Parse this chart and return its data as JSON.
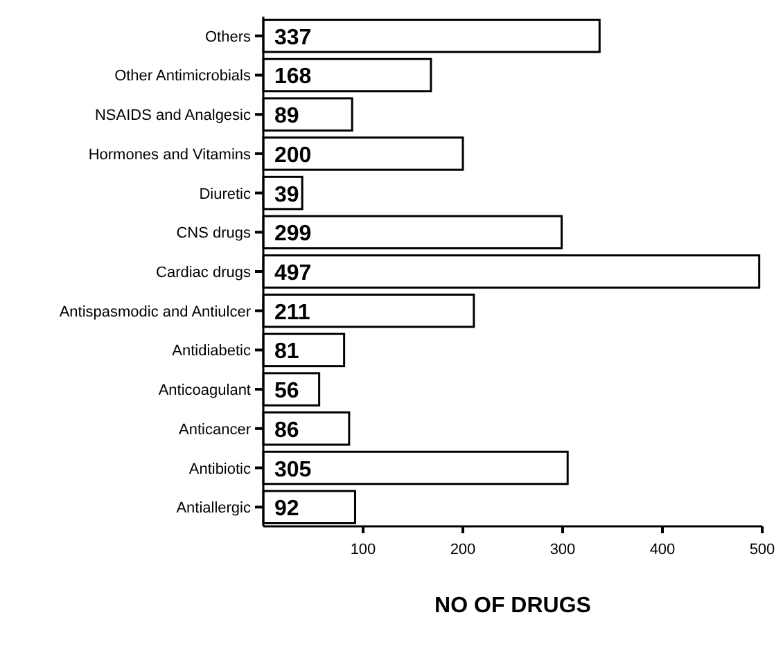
{
  "chart_data": {
    "type": "bar",
    "orientation": "horizontal",
    "xlabel": "NO OF DRUGS",
    "categories": [
      "Others",
      "Other Antimicrobials",
      "NSAIDS and Analgesic",
      "Hormones and Vitamins",
      "Diuretic",
      "CNS drugs",
      "Cardiac drugs",
      "Antispasmodic and Antiulcer",
      "Antidiabetic",
      "Anticoagulant",
      "Anticancer",
      "Antibiotic",
      "Antiallergic"
    ],
    "values": [
      337,
      168,
      89,
      200,
      39,
      299,
      497,
      211,
      81,
      56,
      86,
      305,
      92
    ],
    "color": "#ffffff",
    "data_labels": true,
    "xlim": [
      0,
      500
    ],
    "xticks": [
      100,
      200,
      300,
      400,
      500
    ]
  }
}
